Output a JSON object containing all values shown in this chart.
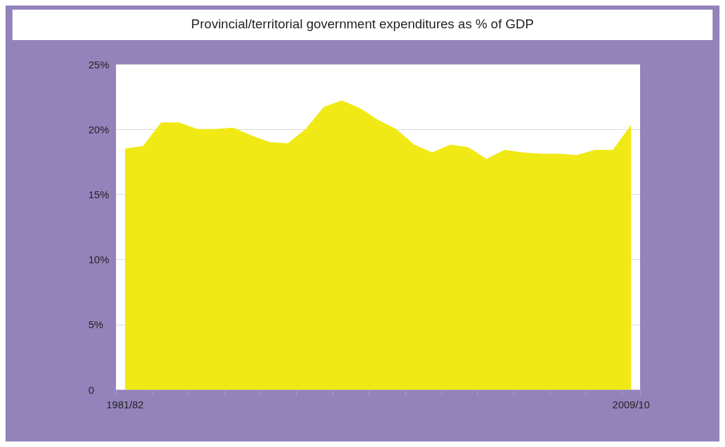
{
  "chart_data": {
    "type": "area",
    "title": "Provincial/territorial government expenditures as % of GDP",
    "categories": [
      "1981/82",
      null,
      null,
      null,
      null,
      null,
      null,
      null,
      null,
      null,
      null,
      null,
      null,
      null,
      null,
      null,
      null,
      null,
      null,
      null,
      null,
      null,
      null,
      null,
      null,
      null,
      null,
      null,
      "2009/10"
    ],
    "series": [
      {
        "color": "#f0e916",
        "values": [
          18.5,
          18.7,
          20.5,
          20.5,
          20.0,
          20.0,
          20.1,
          19.5,
          19.0,
          18.9,
          20.0,
          21.7,
          22.2,
          21.6,
          20.7,
          20.0,
          18.8,
          18.2,
          18.8,
          18.6,
          17.7,
          18.4,
          18.2,
          18.1,
          18.1,
          18.0,
          18.4,
          18.4,
          20.3
        ]
      }
    ],
    "ylim": [
      0,
      25
    ],
    "yticks": [
      0,
      {
        "value": 5,
        "label": "5%"
      },
      {
        "value": 10,
        "label": "10%"
      },
      {
        "value": 15,
        "label": "15%"
      },
      {
        "value": 20,
        "label": "20%"
      },
      {
        "value": 25,
        "label": "25%"
      }
    ],
    "grid": "y"
  }
}
